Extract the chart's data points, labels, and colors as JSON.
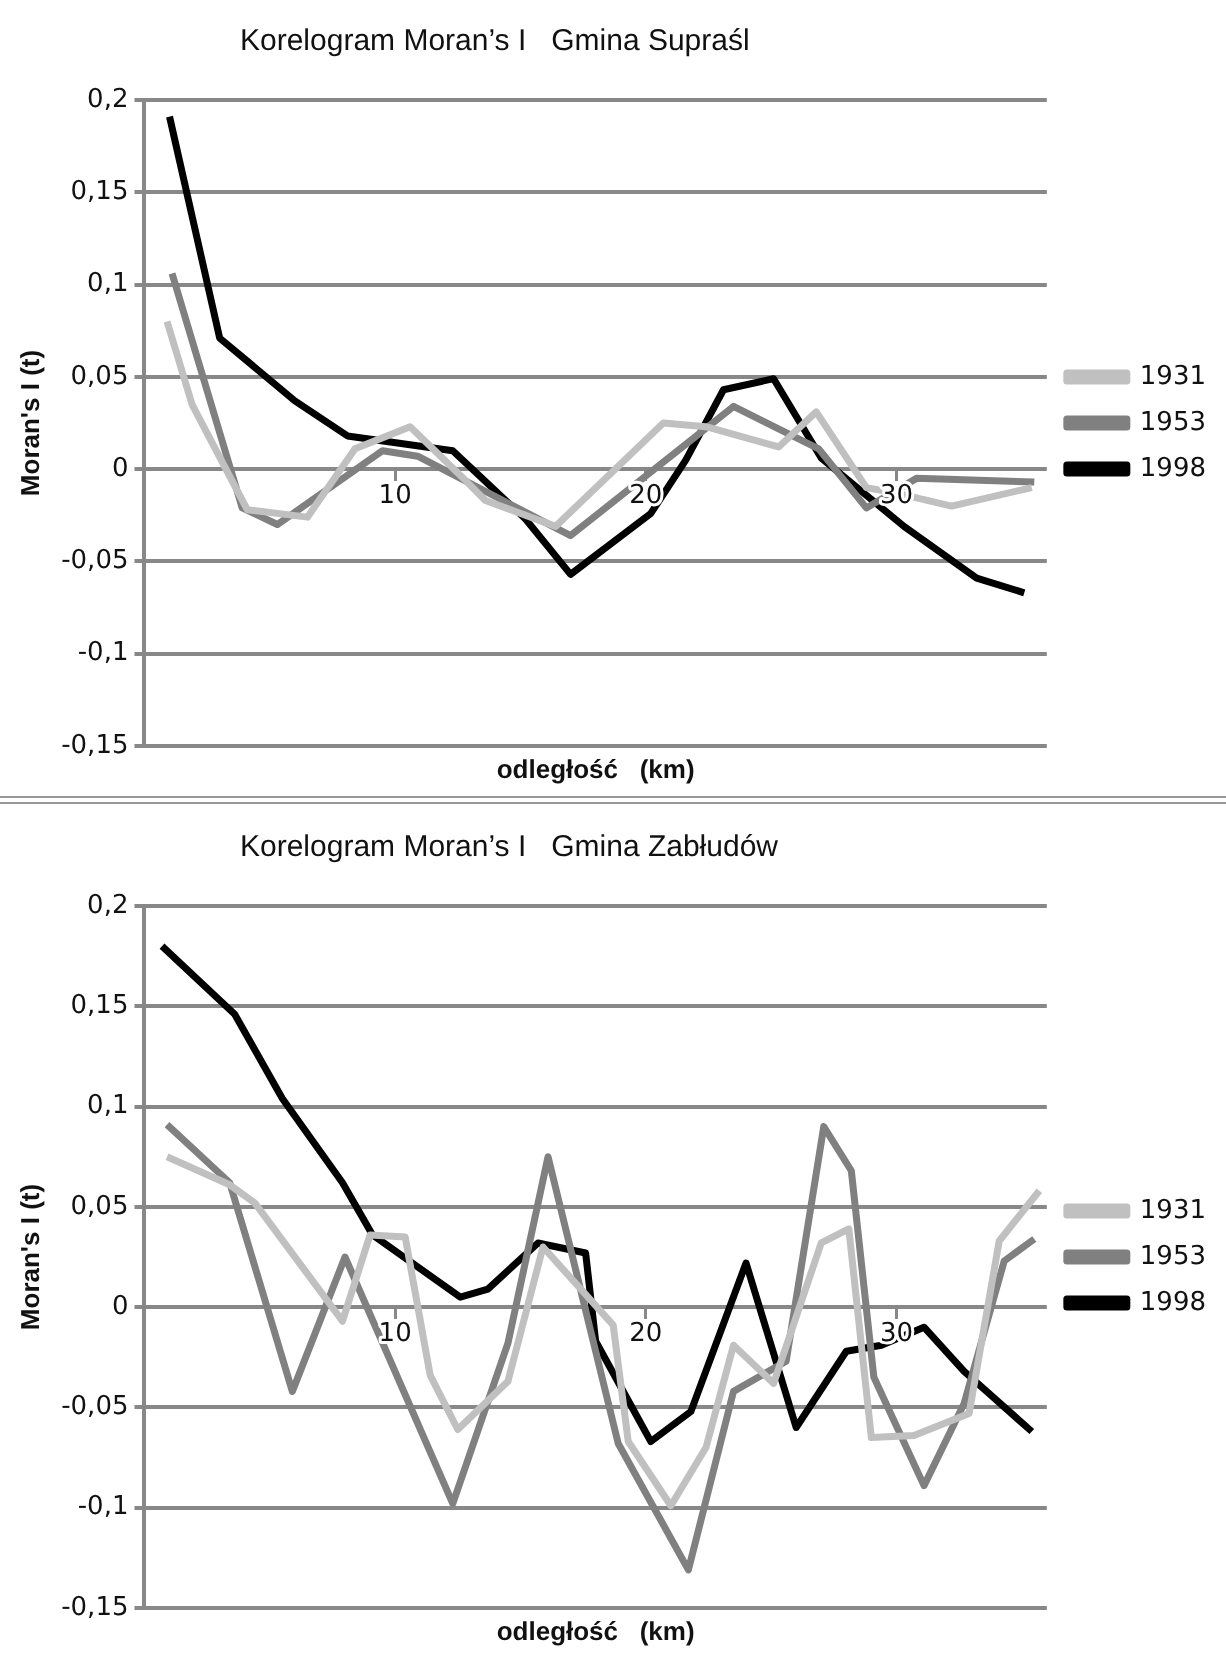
{
  "chart_data": [
    {
      "type": "line",
      "title": "Korelogram Moran’s I   Gmina Supraśl",
      "xlabel": "odległość   (km)",
      "ylabel": "Moran's I (t)",
      "xlim": [
        0,
        36
      ],
      "xticks": [
        10,
        20,
        30
      ],
      "ylim": [
        -0.15,
        0.2
      ],
      "yticks": [
        {
          "value": -0.15,
          "label": "-0,15"
        },
        {
          "value": -0.1,
          "label": "-0,1"
        },
        {
          "value": -0.05,
          "label": "-0,05"
        },
        0,
        {
          "value": 0.05,
          "label": "0,05"
        },
        {
          "value": 0.1,
          "label": "0,1"
        },
        {
          "value": 0.15,
          "label": "0,15"
        },
        {
          "value": 0.2,
          "label": "0,2"
        }
      ],
      "grid": "y",
      "legend": "right",
      "marker": "none",
      "line_style": "solid",
      "series": [
        {
          "name": "1931",
          "color": "#c0c0c0",
          "x": [
            0.9,
            1.9,
            4.1,
            6.5,
            8.4,
            10.6,
            12.8,
            13.6,
            16.4,
            20.7,
            22.4,
            25.3,
            26.8,
            28.8,
            30.0,
            32.2,
            35.4
          ],
          "values": [
            0.08,
            0.035,
            -0.022,
            -0.026,
            0.011,
            0.023,
            -0.006,
            -0.017,
            -0.031,
            0.025,
            0.023,
            0.012,
            0.031,
            -0.01,
            -0.013,
            -0.02,
            -0.01
          ]
        },
        {
          "name": "1953",
          "color": "#808080",
          "x": [
            1.1,
            3.9,
            5.3,
            9.5,
            10.9,
            17.0,
            23.5,
            26.9,
            28.8,
            30.8,
            35.5
          ],
          "values": [
            0.106,
            -0.021,
            -0.03,
            0.01,
            0.007,
            -0.036,
            0.034,
            0.011,
            -0.021,
            -0.005,
            -0.007
          ]
        },
        {
          "name": "1998",
          "color": "#000000",
          "x": [
            1.0,
            3.0,
            6.0,
            8.1,
            12.3,
            15.2,
            17.0,
            20.2,
            21.6,
            23.1,
            25.1,
            27.0,
            30.3,
            33.2,
            35.1
          ],
          "values": [
            0.191,
            0.071,
            0.037,
            0.018,
            0.01,
            -0.027,
            -0.057,
            -0.024,
            0.005,
            0.043,
            0.049,
            0.006,
            -0.031,
            -0.059,
            -0.067
          ]
        }
      ]
    },
    {
      "type": "line",
      "title": "Korelogram Moran’s I   Gmina Zabłudów",
      "xlabel": "odległość   (km)",
      "ylabel": "Moran's I (t)",
      "xlim": [
        0,
        36
      ],
      "xticks": [
        10,
        20,
        30
      ],
      "ylim": [
        -0.15,
        0.2
      ],
      "yticks": [
        {
          "value": -0.15,
          "label": "-0,15"
        },
        {
          "value": -0.1,
          "label": "-0,1"
        },
        {
          "value": -0.05,
          "label": "-0,05"
        },
        0,
        {
          "value": 0.05,
          "label": "0,05"
        },
        {
          "value": 0.1,
          "label": "0,1"
        },
        {
          "value": 0.15,
          "label": "0,15"
        },
        {
          "value": 0.2,
          "label": "0,2"
        }
      ],
      "grid": "y",
      "legend": "right",
      "marker": "none",
      "line_style": "solid",
      "series": [
        {
          "name": "1931",
          "color": "#c0c0c0",
          "x": [
            0.9,
            3.4,
            4.4,
            7.9,
            9.0,
            10.4,
            11.4,
            12.5,
            14.5,
            15.9,
            18.7,
            19.3,
            21.0,
            22.4,
            23.5,
            25.1,
            27.0,
            28.1,
            29.0,
            30.7,
            32.9,
            34.1,
            35.7
          ],
          "values": [
            0.075,
            0.061,
            0.052,
            -0.007,
            0.036,
            0.035,
            -0.034,
            -0.061,
            -0.037,
            0.03,
            -0.009,
            -0.067,
            -0.099,
            -0.07,
            -0.019,
            -0.038,
            0.032,
            0.039,
            -0.065,
            -0.064,
            -0.053,
            0.033,
            0.058
          ]
        },
        {
          "name": "1953",
          "color": "#808080",
          "x": [
            0.9,
            3.4,
            5.9,
            8.0,
            12.3,
            14.5,
            16.1,
            18.9,
            21.7,
            23.5,
            25.6,
            27.1,
            28.2,
            29.1,
            31.1,
            32.7,
            34.3,
            35.5
          ],
          "values": [
            0.091,
            0.062,
            -0.042,
            0.025,
            -0.098,
            -0.018,
            0.075,
            -0.068,
            -0.131,
            -0.042,
            -0.027,
            0.09,
            0.068,
            -0.035,
            -0.089,
            -0.048,
            0.023,
            0.034
          ]
        },
        {
          "name": "1998",
          "color": "#000000",
          "x": [
            0.7,
            3.6,
            5.5,
            7.9,
            9.1,
            12.6,
            13.7,
            15.7,
            17.6,
            18.0,
            20.2,
            21.8,
            24.0,
            26.0,
            28.0,
            29.4,
            31.1,
            32.7,
            35.4
          ],
          "values": [
            0.18,
            0.146,
            0.104,
            0.062,
            0.036,
            0.005,
            0.009,
            0.032,
            0.027,
            -0.017,
            -0.067,
            -0.052,
            0.022,
            -0.06,
            -0.022,
            -0.019,
            -0.01,
            -0.032,
            -0.062
          ]
        }
      ]
    }
  ]
}
